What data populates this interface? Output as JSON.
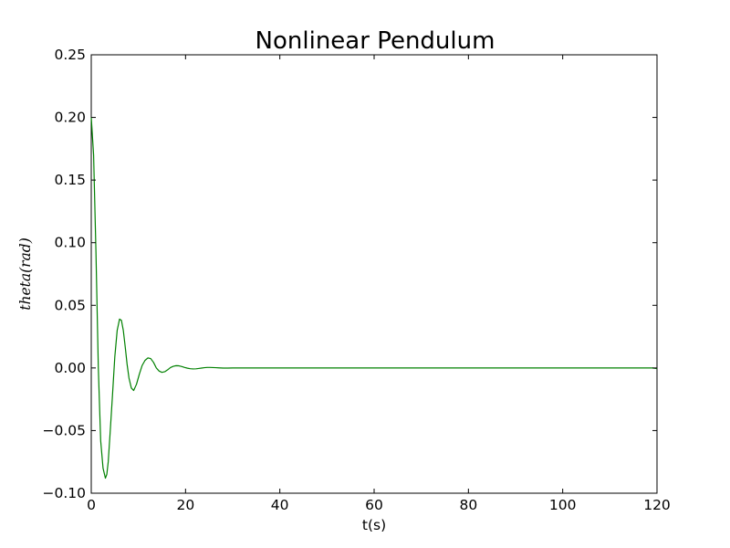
{
  "chart_data": {
    "type": "line",
    "title": "Nonlinear Pendulum",
    "xlabel": "t(s)",
    "ylabel": "theta(rad)",
    "xlim": [
      0,
      120
    ],
    "ylim": [
      -0.1,
      0.25
    ],
    "grid": false,
    "x_ticks": [
      "0",
      "20",
      "40",
      "60",
      "80",
      "100",
      "120"
    ],
    "y_ticks": [
      "−0.10",
      "−0.05",
      "0.00",
      "0.05",
      "0.10",
      "0.15",
      "0.20",
      "0.25"
    ],
    "series": [
      {
        "color": "#008000",
        "x": [
          0,
          0.5,
          1.0,
          1.5,
          2.0,
          2.5,
          3.0,
          3.3,
          3.6,
          4.0,
          4.5,
          5.0,
          5.5,
          6.0,
          6.4,
          6.8,
          7.2,
          7.6,
          8.0,
          8.5,
          9.0,
          9.6,
          10.2,
          10.8,
          11.4,
          12.0,
          12.6,
          13.2,
          13.8,
          14.4,
          15.0,
          15.6,
          16.2,
          16.8,
          17.4,
          18.0,
          18.6,
          19.2,
          19.8,
          20.4,
          21.0,
          21.6,
          22.2,
          22.8,
          23.4,
          24.0,
          24.6,
          25.2,
          25.8,
          26.4,
          27.0,
          28.0,
          29.0,
          30.0,
          32.0,
          35.0,
          40.0,
          50.0,
          60.0,
          80.0,
          100.0,
          119.0,
          120.0
        ],
        "y": [
          0.2,
          0.17,
          0.092,
          0.0,
          -0.058,
          -0.08,
          -0.088,
          -0.085,
          -0.075,
          -0.052,
          -0.022,
          0.009,
          0.03,
          0.039,
          0.038,
          0.03,
          0.017,
          0.003,
          -0.008,
          -0.016,
          -0.018,
          -0.013,
          -0.005,
          0.002,
          0.006,
          0.008,
          0.0075,
          0.0045,
          0.0,
          -0.0025,
          -0.0035,
          -0.003,
          -0.0015,
          0.0003,
          0.0013,
          0.0018,
          0.0017,
          0.0011,
          0.0004,
          -0.0002,
          -0.0006,
          -0.0008,
          -0.0007,
          -0.0004,
          -0.0001,
          0.0002,
          0.0004,
          0.0004,
          0.0003,
          0.0002,
          0.0001,
          -0.0001,
          -0.0001,
          0.0,
          0.0,
          0.0,
          0.0,
          0.0,
          0.0,
          0.0,
          0.0,
          0.0,
          -0.0005
        ]
      }
    ]
  }
}
